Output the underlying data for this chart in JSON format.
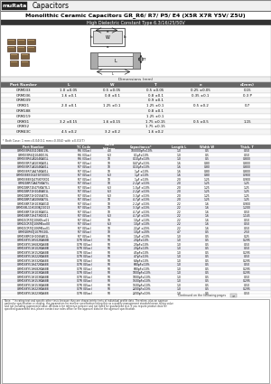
{
  "title_main": "Monolithic Ceramic Capacitors GR_R6/ R7/ P5/ E4 (X5R X7R Y5V/ Z5U)",
  "title_sub": "High Dielectric Constant Type 6.3/16/25/50V",
  "brand": "muRata",
  "brand_label": "Capacitors",
  "dim_table_headers": [
    "Part Number",
    "L",
    "W",
    "T",
    "e",
    "d(mm)"
  ],
  "dim_rows": [
    [
      "GRM033",
      "1.0 ±0.05",
      "0.5 ±0.05",
      "0.5 ±0.05",
      "0.25 ±0.05",
      "0.15"
    ],
    [
      "GRM036",
      "1.6 ±0.1",
      "0.8 ±0.1",
      "0.8 ±0.1",
      "0.35 ±0.1",
      "0.3 P"
    ],
    [
      "GRM039",
      "",
      "",
      "0.9 ±0.1",
      "",
      ""
    ],
    [
      "GRM21",
      "2.0 ±0.1",
      "1.25 ±0.1",
      "1.25 ±0.1",
      "0.5 ±0.2",
      "0.7"
    ],
    [
      "GRM188",
      "",
      "",
      "0.8 ±0.1",
      "",
      ""
    ],
    [
      "GRM219",
      "",
      "",
      "1.25 ±0.1",
      "",
      ""
    ],
    [
      "GRM31",
      "3.2 ±0.15",
      "1.6 ±0.15",
      "1.75 ±0.15",
      "0.5 ±0.5",
      "1.15"
    ],
    [
      "GRM32",
      "",
      "",
      "1.75 ±0.15",
      "",
      ""
    ],
    [
      "GRM43C",
      "4.5 ±0.2",
      "3.2 ±0.2",
      "1.6 ±0.2",
      "",
      ""
    ]
  ],
  "dim_note": "* Both Case: 1 mm=0.04(0.1 mm=0.004) with ±0.01(T)",
  "main_headers": [
    "Part Number",
    "TC Code",
    "Rated Voltage\n(Vdc)",
    "Capacitance*",
    "Length L\n(mm)",
    "Width W\n(mm)",
    "Thickness T\n(mm)"
  ],
  "main_rows": [
    [
      "GRM033R60G104KE19L",
      "R6 (G5ac)",
      "4.0",
      "100000pF±10%",
      "1.0",
      "0.5",
      "0.50"
    ],
    [
      "GRM033R60J104KE19L",
      "R6 (G5ac)",
      "6.3",
      "0.1µF±10%",
      "1.0",
      "0.5",
      "0.50"
    ],
    [
      "GRM033R61A104KA01L",
      "R6 (G5ac)",
      "10",
      "0.10µF±10%",
      "1.0",
      "0.5",
      "0.800"
    ],
    [
      "GRM033R71A103KA01L",
      "R7 (G5ac)",
      "10",
      "0.47µF±10%",
      "1.6",
      "0.80",
      "0.800"
    ],
    [
      "GRM033R71A104KA01L",
      "R7 (G5ac)",
      "10",
      "0.10µF±10%",
      "1.6",
      "0.80",
      "0.800"
    ],
    [
      "GRM036R71A474KA01L",
      "R7 (G5ac)",
      "10",
      "1µF ±10%",
      "1.6",
      "0.80",
      "0.800"
    ],
    [
      "GRM036B30G475KYXXV1",
      "R7 (G5ac)",
      "6.3",
      "1µF ±10%",
      "1.6",
      "0.80",
      "0.900"
    ],
    [
      "GRM036B30J475KYXX01",
      "R7 (G5ac)",
      "10",
      "1µF ±10%",
      "2.0",
      "1.25",
      "0.900"
    ],
    [
      "GRM21BR71A475KA73L",
      "R7 (G5ac)",
      "10",
      "2.2µF ±10%",
      "2.0",
      "1.25",
      "1.25"
    ],
    [
      "GRM21BR71E475KA73L1",
      "R7 (G5ac)",
      "6.3",
      "1.0µF ±10%",
      "2.0",
      "1.25",
      "1.25"
    ],
    [
      "GRM21BR71H104KA01L",
      "R7 (G5ac)",
      "6.3",
      "2.2µF ±10%",
      "2.0",
      "1.25",
      "1.25"
    ],
    [
      "GRM21BR71H105KA73L",
      "R7 (G5ac)",
      "6.3",
      "3.3µF ±10%",
      "2.0",
      "1.25",
      "1.25"
    ],
    [
      "GRM21BR71A106KA73L",
      "R7 (G5ac)",
      "10",
      "4.7µF ±10%",
      "2.0",
      "1.25",
      "1.25"
    ],
    [
      "GRM188R71H103KA01D",
      "R7 (G5ac)",
      "10",
      "2.2µF ±10%",
      "2.2",
      "1.6",
      "0.900"
    ],
    [
      "GRM188L11H103KJ01013",
      "R7 (G5ac)",
      "10",
      "3.3µF ±10%",
      "2.2",
      "1.6",
      "1.200"
    ],
    [
      "GRM188R71H103KA01L",
      "R7 (G5ac)",
      "10",
      "4.7µF ±10%",
      "2.2",
      "1.6",
      "0.50"
    ],
    [
      "GRM188R71H473KE011",
      "R7 (G5ac)",
      "6.3",
      "4.7µF ±10%",
      "2.2",
      "1.6",
      "1.145"
    ],
    [
      "GRM21CR70J106KExx01",
      "R7 (G5ac)",
      "10",
      "10µF ±10%",
      "2.2",
      "1.6",
      "0.50"
    ],
    [
      "GRM21CR70J106MExx00",
      "R7 (G5ac)",
      "6.3",
      "10µF ±10%",
      "2.2",
      "1.6",
      "0.50"
    ],
    [
      "GRM21CR70J106MExx01",
      "R7 (G5ac)",
      "10",
      "22µF ±20%",
      "2.2",
      "1.6",
      "0.50"
    ],
    [
      "GRM32ER60J107ME20L",
      "R7 (G5ac)",
      "10",
      "10µF ±20%",
      "4.7",
      "0.5",
      "2.50"
    ],
    [
      "GRM188R01H106KA01L",
      "R7 (G5ac)",
      "50",
      "10µF ±10%",
      "1.0",
      "0.5",
      "0.25"
    ],
    [
      "GRM188Y51H502KA68B",
      "X7R (G5ac)",
      "50",
      "2.0pF±10%",
      "1.0",
      "0.5",
      "0.295"
    ],
    [
      "GRM188Y51H682KA68B",
      "X7R (G5ac)",
      "50",
      "2.0pF±10%",
      "1.0",
      "0.5",
      "0.50"
    ],
    [
      "GRM188Y51H102KA68B",
      "X7R (G5ac)",
      "50",
      "2.0pF±10%",
      "1.0",
      "0.5",
      "0.50"
    ],
    [
      "GRM188Y51H152KA68B",
      "X7R (G5ac)",
      "50",
      "4.5pF±10%",
      "1.0",
      "0.5",
      "0.295"
    ],
    [
      "GRM188Y51H222KA68B",
      "X7R (G5ac)",
      "50",
      "4.7pF±10%",
      "1.0",
      "0.5",
      "0.50"
    ],
    [
      "GRM188Y51H332KA68B",
      "X7R (G5ac)",
      "50",
      "6.8pF±10%",
      "1.0",
      "0.5",
      "0.295"
    ],
    [
      "GRM188Y51H472KA68B",
      "X7R (G5ac)",
      "50",
      "680pF±10%",
      "1.0",
      "0.5",
      "0.50"
    ],
    [
      "GRM188Y51H682KA68B",
      "X7R (G5ac)",
      "50",
      "680pF±10%",
      "1.0",
      "0.5",
      "0.295"
    ],
    [
      "GRM188Y51H103KA68B",
      "X7R (G5ac)",
      "50",
      "1000pF±10%",
      "1.0",
      "0.5",
      "0.295"
    ],
    [
      "GRM188Y51H103KA68B",
      "X7R (G5ac)",
      "50",
      "1000pF±10%",
      "1.0",
      "0.5",
      "0.50"
    ],
    [
      "GRM188Y51H153KA68B",
      "X7R (G5ac)",
      "50",
      "1500pF±10%",
      "1.0",
      "0.5",
      "0.295"
    ],
    [
      "GRM188Y51H153KA68B",
      "X7R (G5ac)",
      "50",
      "1500pF±10%",
      "1.0",
      "0.5",
      "0.50"
    ],
    [
      "GRM188Y51H223KA68B",
      "X7R (G5ac)",
      "50",
      "2200pF±10%",
      "1.0",
      "0.5",
      "0.295"
    ],
    [
      "GRM188Y51H223KA68B",
      "X7R (G5ac)",
      "50",
      "2200pF±10%",
      "1.0",
      "0.5",
      "0.50"
    ]
  ],
  "footer_lines": [
    "Note:  * In rating test and specific other tests because they are characteristic tests of individual profile data. Therefore, plus an approve",
    "particular specification or catalog, the parameters for monitor specification listing this as a quality management standard mean rating value",
    "and not including guaranteed value. All data is for reference purpose and not listed for guaranteed test. If you require product data for",
    "specified guaranteed test, please contact our sales office for the approvel data for the approvel specification."
  ],
  "continued": "Continued on the following pages"
}
